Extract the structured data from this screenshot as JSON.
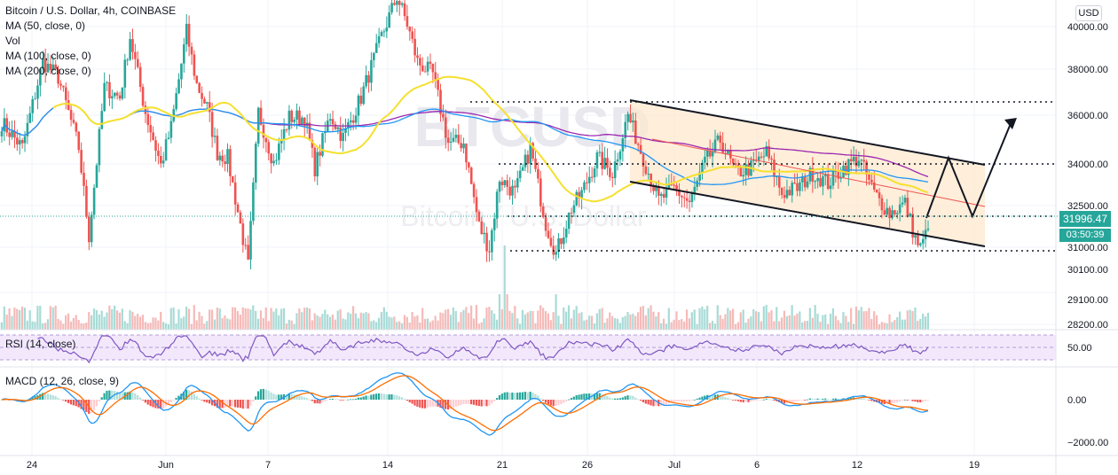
{
  "legend": {
    "title": "Bitcoin / U.S. Dollar, 4h, COINBASE",
    "ma50": "MA (50, close, 0)",
    "vol": "Vol",
    "ma100": "MA (100, close, 0)",
    "ma200": "MA (200, close, 0)"
  },
  "watermark": {
    "symbol": "BTCUSD",
    "name": "Bitcoin / U.S. Dollar"
  },
  "currency_badge": "USD",
  "last_price": "31996.47",
  "countdown": "03:50:39",
  "rsi_label": "RSI (14, close)",
  "macd_label": "MACD (12, 26, close, 9)",
  "colors": {
    "up": "#26a69a",
    "down": "#ef5350",
    "ma50": "#f5e02f",
    "ma100": "#2196f3",
    "ma200": "#9c27b0",
    "rsi": "#7e57c2",
    "macd": "#2196f3",
    "signal": "#ff6d00",
    "channel_fill": "#fce7cc",
    "last_price": "#26a69a"
  },
  "chart_data": {
    "type": "candlestick",
    "symbol": "BTCUSD",
    "timeframe": "4h",
    "x_ticks": [
      "24",
      "Jun",
      "7",
      "14",
      "21",
      "26",
      "Jul",
      "6",
      "12",
      "19"
    ],
    "price_ticks": [
      "40000.00",
      "38000.00",
      "36000.00",
      "34000.00",
      "32500.00",
      "31000.00",
      "30100.00",
      "29100.00",
      "28200.00"
    ],
    "rsi_ticks": [
      "50.00"
    ],
    "macd_ticks": [
      "0.00",
      "−2000.00"
    ],
    "ohlc_keypoints": [
      {
        "i": 0,
        "close": 36200
      },
      {
        "i": 8,
        "close": 35200
      },
      {
        "i": 16,
        "close": 38600
      },
      {
        "i": 22,
        "close": 38000
      },
      {
        "i": 30,
        "close": 35200
      },
      {
        "i": 34,
        "close": 31700
      },
      {
        "i": 40,
        "close": 37600
      },
      {
        "i": 46,
        "close": 37200
      },
      {
        "i": 50,
        "close": 39600
      },
      {
        "i": 56,
        "close": 36600
      },
      {
        "i": 62,
        "close": 34500
      },
      {
        "i": 66,
        "close": 36000
      },
      {
        "i": 72,
        "close": 39800
      },
      {
        "i": 76,
        "close": 37700
      },
      {
        "i": 80,
        "close": 36800
      },
      {
        "i": 84,
        "close": 35000
      },
      {
        "i": 88,
        "close": 34800
      },
      {
        "i": 94,
        "close": 31600
      },
      {
        "i": 96,
        "close": 30500
      },
      {
        "i": 100,
        "close": 36600
      },
      {
        "i": 106,
        "close": 34600
      },
      {
        "i": 112,
        "close": 36400
      },
      {
        "i": 118,
        "close": 36400
      },
      {
        "i": 122,
        "close": 34400
      },
      {
        "i": 128,
        "close": 36500
      },
      {
        "i": 133,
        "close": 35600
      },
      {
        "i": 140,
        "close": 37200
      },
      {
        "i": 148,
        "close": 39600
      },
      {
        "i": 154,
        "close": 41200
      },
      {
        "i": 158,
        "close": 40100
      },
      {
        "i": 162,
        "close": 38600
      },
      {
        "i": 168,
        "close": 38100
      },
      {
        "i": 174,
        "close": 35400
      },
      {
        "i": 180,
        "close": 35400
      },
      {
        "i": 186,
        "close": 32100
      },
      {
        "i": 190,
        "close": 31200
      },
      {
        "i": 194,
        "close": 34000
      },
      {
        "i": 200,
        "close": 33400
      },
      {
        "i": 206,
        "close": 35200
      },
      {
        "i": 212,
        "close": 32200
      },
      {
        "i": 216,
        "close": 31000
      },
      {
        "i": 222,
        "close": 32800
      },
      {
        "i": 226,
        "close": 33400
      },
      {
        "i": 232,
        "close": 34800
      },
      {
        "i": 238,
        "close": 34200
      },
      {
        "i": 244,
        "close": 36500
      },
      {
        "i": 250,
        "close": 34800
      },
      {
        "i": 256,
        "close": 33100
      },
      {
        "i": 262,
        "close": 33600
      },
      {
        "i": 268,
        "close": 33000
      },
      {
        "i": 274,
        "close": 34600
      },
      {
        "i": 280,
        "close": 35500
      },
      {
        "i": 286,
        "close": 34200
      },
      {
        "i": 292,
        "close": 34400
      },
      {
        "i": 298,
        "close": 35000
      },
      {
        "i": 304,
        "close": 33400
      },
      {
        "i": 310,
        "close": 33600
      },
      {
        "i": 316,
        "close": 34200
      },
      {
        "i": 322,
        "close": 33800
      },
      {
        "i": 328,
        "close": 34400
      },
      {
        "i": 334,
        "close": 34800
      },
      {
        "i": 340,
        "close": 33400
      },
      {
        "i": 346,
        "close": 32600
      },
      {
        "i": 352,
        "close": 33000
      },
      {
        "i": 356,
        "close": 31600
      },
      {
        "i": 358,
        "close": 31200
      },
      {
        "i": 361,
        "close": 31996
      }
    ],
    "levels": [
      36600,
      34000,
      32000,
      30800
    ],
    "channel": {
      "upper": [
        {
          "date": "Jun 28",
          "price": 36600
        },
        {
          "date": "Jul 17",
          "price": 34000
        }
      ],
      "lower": [
        {
          "date": "Jun 28",
          "price": 33200
        },
        {
          "date": "Jul 17",
          "price": 30700
        }
      ]
    },
    "projection": [
      31996,
      34200,
      32100,
      35900
    ],
    "ylim": [
      27600,
      41200
    ]
  }
}
